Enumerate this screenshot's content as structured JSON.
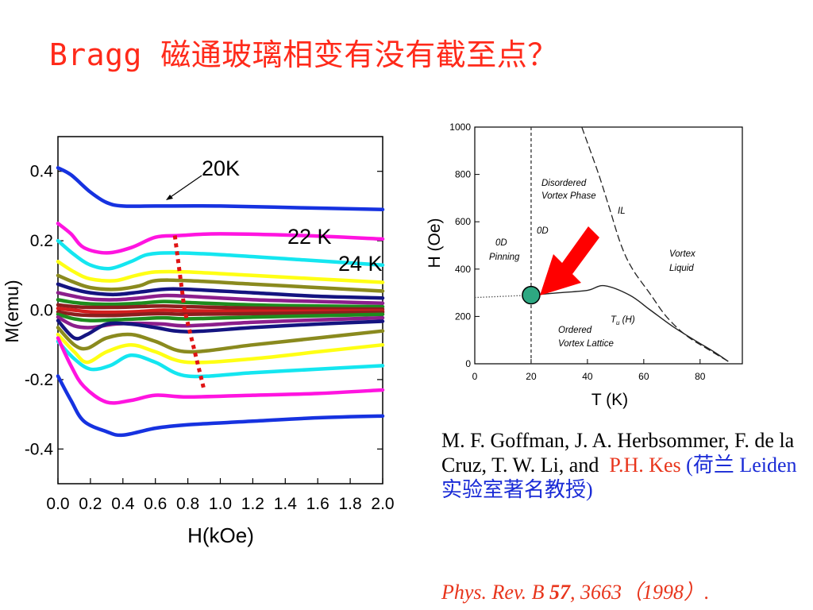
{
  "slide": {
    "title": "Bragg 磁通玻璃相变有没有截至点？"
  },
  "citation": {
    "authors": "M. F. Goffman, J. A. Herbsommer, F. de la Cruz, T. W. Li, and",
    "highlight_author": "P.H. Kes",
    "note": "(荷兰 Leiden 实验室著名教授)",
    "journal_name": "Phys. Rev. B",
    "volume": "57",
    "pages": ", 3663",
    "year": "（1998）."
  },
  "chart_data": [
    {
      "type": "line",
      "xlabel": "H(kOe)",
      "ylabel": "M(emu)",
      "xlim": [
        0.0,
        2.0
      ],
      "ylim": [
        -0.5,
        0.5
      ],
      "xticks": [
        "0.0",
        "0.2",
        "0.4",
        "0.6",
        "0.8",
        "1.0",
        "1.2",
        "1.4",
        "1.6",
        "1.8",
        "2.0"
      ],
      "yticks": [
        "0.4",
        "0.2",
        "0.0",
        "-0.2",
        "-0.4"
      ],
      "annotations": [
        "20K",
        "22 K",
        "24 K"
      ],
      "series": [
        {
          "color": "#1632e0",
          "values": [
            [
              0,
              0.41
            ],
            [
              0.08,
              0.39
            ],
            [
              0.2,
              0.34
            ],
            [
              0.3,
              0.31
            ],
            [
              0.4,
              0.3
            ],
            [
              0.6,
              0.3
            ],
            [
              1,
              0.3
            ],
            [
              1.5,
              0.295
            ],
            [
              2,
              0.29
            ]
          ]
        },
        {
          "color": "#ff14e0",
          "values": [
            [
              0,
              0.25
            ],
            [
              0.08,
              0.22
            ],
            [
              0.16,
              0.18
            ],
            [
              0.3,
              0.165
            ],
            [
              0.45,
              0.18
            ],
            [
              0.6,
              0.21
            ],
            [
              0.75,
              0.215
            ],
            [
              1,
              0.22
            ],
            [
              1.5,
              0.215
            ],
            [
              2,
              0.205
            ]
          ]
        },
        {
          "color": "#14e6f0",
          "values": [
            [
              0,
              0.2
            ],
            [
              0.1,
              0.16
            ],
            [
              0.2,
              0.13
            ],
            [
              0.32,
              0.12
            ],
            [
              0.45,
              0.14
            ],
            [
              0.55,
              0.16
            ],
            [
              0.7,
              0.165
            ],
            [
              1,
              0.16
            ],
            [
              1.5,
              0.145
            ],
            [
              2,
              0.13
            ]
          ]
        },
        {
          "color": "#ffff14",
          "values": [
            [
              0,
              0.14
            ],
            [
              0.1,
              0.11
            ],
            [
              0.2,
              0.09
            ],
            [
              0.35,
              0.085
            ],
            [
              0.48,
              0.1
            ],
            [
              0.6,
              0.11
            ],
            [
              0.8,
              0.11
            ],
            [
              1.2,
              0.1
            ],
            [
              1.6,
              0.09
            ],
            [
              2,
              0.08
            ]
          ]
        },
        {
          "color": "#8a8a1e",
          "values": [
            [
              0,
              0.1
            ],
            [
              0.1,
              0.08
            ],
            [
              0.2,
              0.065
            ],
            [
              0.35,
              0.06
            ],
            [
              0.5,
              0.07
            ],
            [
              0.6,
              0.085
            ],
            [
              0.8,
              0.085
            ],
            [
              1.2,
              0.075
            ],
            [
              1.6,
              0.065
            ],
            [
              2,
              0.055
            ]
          ]
        },
        {
          "color": "#141480",
          "values": [
            [
              0,
              0.075
            ],
            [
              0.1,
              0.06
            ],
            [
              0.2,
              0.05
            ],
            [
              0.35,
              0.045
            ],
            [
              0.5,
              0.052
            ],
            [
              0.65,
              0.06
            ],
            [
              0.8,
              0.06
            ],
            [
              1.2,
              0.05
            ],
            [
              1.6,
              0.04
            ],
            [
              2,
              0.035
            ]
          ]
        },
        {
          "color": "#8c1e8c",
          "values": [
            [
              0,
              0.05
            ],
            [
              0.1,
              0.04
            ],
            [
              0.2,
              0.032
            ],
            [
              0.35,
              0.03
            ],
            [
              0.5,
              0.035
            ],
            [
              0.65,
              0.042
            ],
            [
              0.8,
              0.04
            ],
            [
              1.2,
              0.03
            ],
            [
              1.6,
              0.025
            ],
            [
              2,
              0.02
            ]
          ]
        },
        {
          "color": "#1e8c1e",
          "values": [
            [
              0,
              0.03
            ],
            [
              0.1,
              0.022
            ],
            [
              0.2,
              0.018
            ],
            [
              0.35,
              0.017
            ],
            [
              0.5,
              0.02
            ],
            [
              0.65,
              0.025
            ],
            [
              0.8,
              0.022
            ],
            [
              1.2,
              0.015
            ],
            [
              1.6,
              0.012
            ],
            [
              2,
              0.01
            ]
          ]
        },
        {
          "color": "#8c1e1e",
          "values": [
            [
              0,
              0.015
            ],
            [
              0.1,
              0.01
            ],
            [
              0.2,
              0.008
            ],
            [
              0.35,
              0.008
            ],
            [
              0.5,
              0.01
            ],
            [
              0.65,
              0.012
            ],
            [
              0.8,
              0.01
            ],
            [
              1.2,
              0.006
            ],
            [
              1.6,
              0.004
            ],
            [
              2,
              0.003
            ]
          ]
        },
        {
          "color": "#d21e1e",
          "values": [
            [
              0,
              0.005
            ],
            [
              0.1,
              0.0
            ],
            [
              0.2,
              -0.005
            ],
            [
              0.35,
              -0.006
            ],
            [
              0.5,
              -0.004
            ],
            [
              0.65,
              0.0
            ],
            [
              0.8,
              -0.002
            ],
            [
              1.2,
              -0.003
            ],
            [
              1.6,
              -0.003
            ],
            [
              2,
              -0.003
            ]
          ]
        },
        {
          "color": "#8c1e1e",
          "values": [
            [
              0,
              -0.005
            ],
            [
              0.1,
              -0.012
            ],
            [
              0.2,
              -0.015
            ],
            [
              0.35,
              -0.015
            ],
            [
              0.5,
              -0.012
            ],
            [
              0.65,
              -0.01
            ],
            [
              0.8,
              -0.012
            ],
            [
              1.2,
              -0.01
            ],
            [
              1.6,
              -0.008
            ],
            [
              2,
              -0.006
            ]
          ]
        },
        {
          "color": "#1e8c1e",
          "values": [
            [
              0,
              -0.012
            ],
            [
              0.1,
              -0.025
            ],
            [
              0.2,
              -0.03
            ],
            [
              0.35,
              -0.028
            ],
            [
              0.5,
              -0.025
            ],
            [
              0.65,
              -0.022
            ],
            [
              0.8,
              -0.025
            ],
            [
              1.2,
              -0.02
            ],
            [
              1.6,
              -0.016
            ],
            [
              2,
              -0.012
            ]
          ]
        },
        {
          "color": "#8c1e8c",
          "values": [
            [
              0,
              -0.02
            ],
            [
              0.1,
              -0.045
            ],
            [
              0.2,
              -0.05
            ],
            [
              0.35,
              -0.04
            ],
            [
              0.5,
              -0.038
            ],
            [
              0.65,
              -0.04
            ],
            [
              0.8,
              -0.045
            ],
            [
              1.2,
              -0.035
            ],
            [
              1.6,
              -0.028
            ],
            [
              2,
              -0.022
            ]
          ]
        },
        {
          "color": "#141480",
          "values": [
            [
              0,
              -0.03
            ],
            [
              0.1,
              -0.08
            ],
            [
              0.18,
              -0.07
            ],
            [
              0.3,
              -0.04
            ],
            [
              0.45,
              -0.04
            ],
            [
              0.6,
              -0.05
            ],
            [
              0.8,
              -0.062
            ],
            [
              1.2,
              -0.05
            ],
            [
              1.6,
              -0.04
            ],
            [
              2,
              -0.032
            ]
          ]
        },
        {
          "color": "#8a8a1e",
          "values": [
            [
              0,
              -0.05
            ],
            [
              0.1,
              -0.1
            ],
            [
              0.18,
              -0.11
            ],
            [
              0.3,
              -0.08
            ],
            [
              0.45,
              -0.07
            ],
            [
              0.6,
              -0.09
            ],
            [
              0.8,
              -0.12
            ],
            [
              1.2,
              -0.1
            ],
            [
              1.6,
              -0.08
            ],
            [
              2,
              -0.06
            ]
          ]
        },
        {
          "color": "#ffff14",
          "values": [
            [
              0,
              -0.07
            ],
            [
              0.1,
              -0.12
            ],
            [
              0.18,
              -0.15
            ],
            [
              0.3,
              -0.12
            ],
            [
              0.45,
              -0.1
            ],
            [
              0.6,
              -0.12
            ],
            [
              0.8,
              -0.15
            ],
            [
              1.2,
              -0.14
            ],
            [
              1.6,
              -0.12
            ],
            [
              2,
              -0.1
            ]
          ]
        },
        {
          "color": "#14e6f0",
          "values": [
            [
              0,
              -0.09
            ],
            [
              0.1,
              -0.14
            ],
            [
              0.2,
              -0.17
            ],
            [
              0.32,
              -0.16
            ],
            [
              0.45,
              -0.13
            ],
            [
              0.6,
              -0.15
            ],
            [
              0.8,
              -0.19
            ],
            [
              1.2,
              -0.18
            ],
            [
              1.6,
              -0.17
            ],
            [
              2,
              -0.16
            ]
          ]
        },
        {
          "color": "#ff14e0",
          "values": [
            [
              0,
              -0.08
            ],
            [
              0.08,
              -0.16
            ],
            [
              0.16,
              -0.22
            ],
            [
              0.3,
              -0.265
            ],
            [
              0.45,
              -0.26
            ],
            [
              0.6,
              -0.245
            ],
            [
              0.8,
              -0.25
            ],
            [
              1.2,
              -0.245
            ],
            [
              1.6,
              -0.24
            ],
            [
              2,
              -0.23
            ]
          ]
        },
        {
          "color": "#1632e0",
          "values": [
            [
              0,
              -0.19
            ],
            [
              0.08,
              -0.26
            ],
            [
              0.16,
              -0.32
            ],
            [
              0.3,
              -0.35
            ],
            [
              0.4,
              -0.36
            ],
            [
              0.6,
              -0.34
            ],
            [
              0.8,
              -0.33
            ],
            [
              1.2,
              -0.32
            ],
            [
              1.6,
              -0.31
            ],
            [
              2,
              -0.305
            ]
          ]
        }
      ],
      "dotted_guide": {
        "color": "#e01414",
        "values": [
          [
            0.72,
            0.215
          ],
          [
            0.78,
            0.0
          ],
          [
            0.9,
            -0.23
          ]
        ]
      }
    },
    {
      "type": "line",
      "xlabel": "T (K)",
      "ylabel": "H (Oe)",
      "xlim": [
        0,
        95
      ],
      "ylim": [
        0,
        1000
      ],
      "xticks": [
        "0",
        "20",
        "40",
        "60",
        "80"
      ],
      "yticks": [
        "0",
        "200",
        "400",
        "600",
        "800",
        "1000"
      ],
      "annotations": [
        "Disordered Vortex Phase",
        "IL",
        "0D",
        "0D Pinning",
        "Vortex Liquid",
        "Ordered Vortex Lattice",
        "T_u (H)"
      ],
      "series": [
        {
          "name": "T_u (H)",
          "values": [
            [
              20,
              290
            ],
            [
              30,
              300
            ],
            [
              40,
              310
            ],
            [
              46,
              330
            ],
            [
              55,
              290
            ],
            [
              62,
              230
            ],
            [
              70,
              160
            ],
            [
              78,
              100
            ],
            [
              85,
              50
            ],
            [
              90,
              10
            ]
          ]
        },
        {
          "name": "IL",
          "values": [
            [
              38,
              1000
            ],
            [
              44,
              800
            ],
            [
              48,
              650
            ],
            [
              52,
              500
            ],
            [
              56,
              400
            ],
            [
              62,
              300
            ],
            [
              68,
              200
            ],
            [
              75,
              120
            ],
            [
              83,
              60
            ],
            [
              90,
              10
            ]
          ]
        }
      ],
      "vertical_line_T": 20,
      "low_T_extension": [
        [
          0,
          280
        ],
        [
          20,
          290
        ]
      ],
      "marker": {
        "T": 20,
        "H": 290,
        "color": "#2ea882"
      },
      "arrow_color": "#ff0000"
    }
  ]
}
